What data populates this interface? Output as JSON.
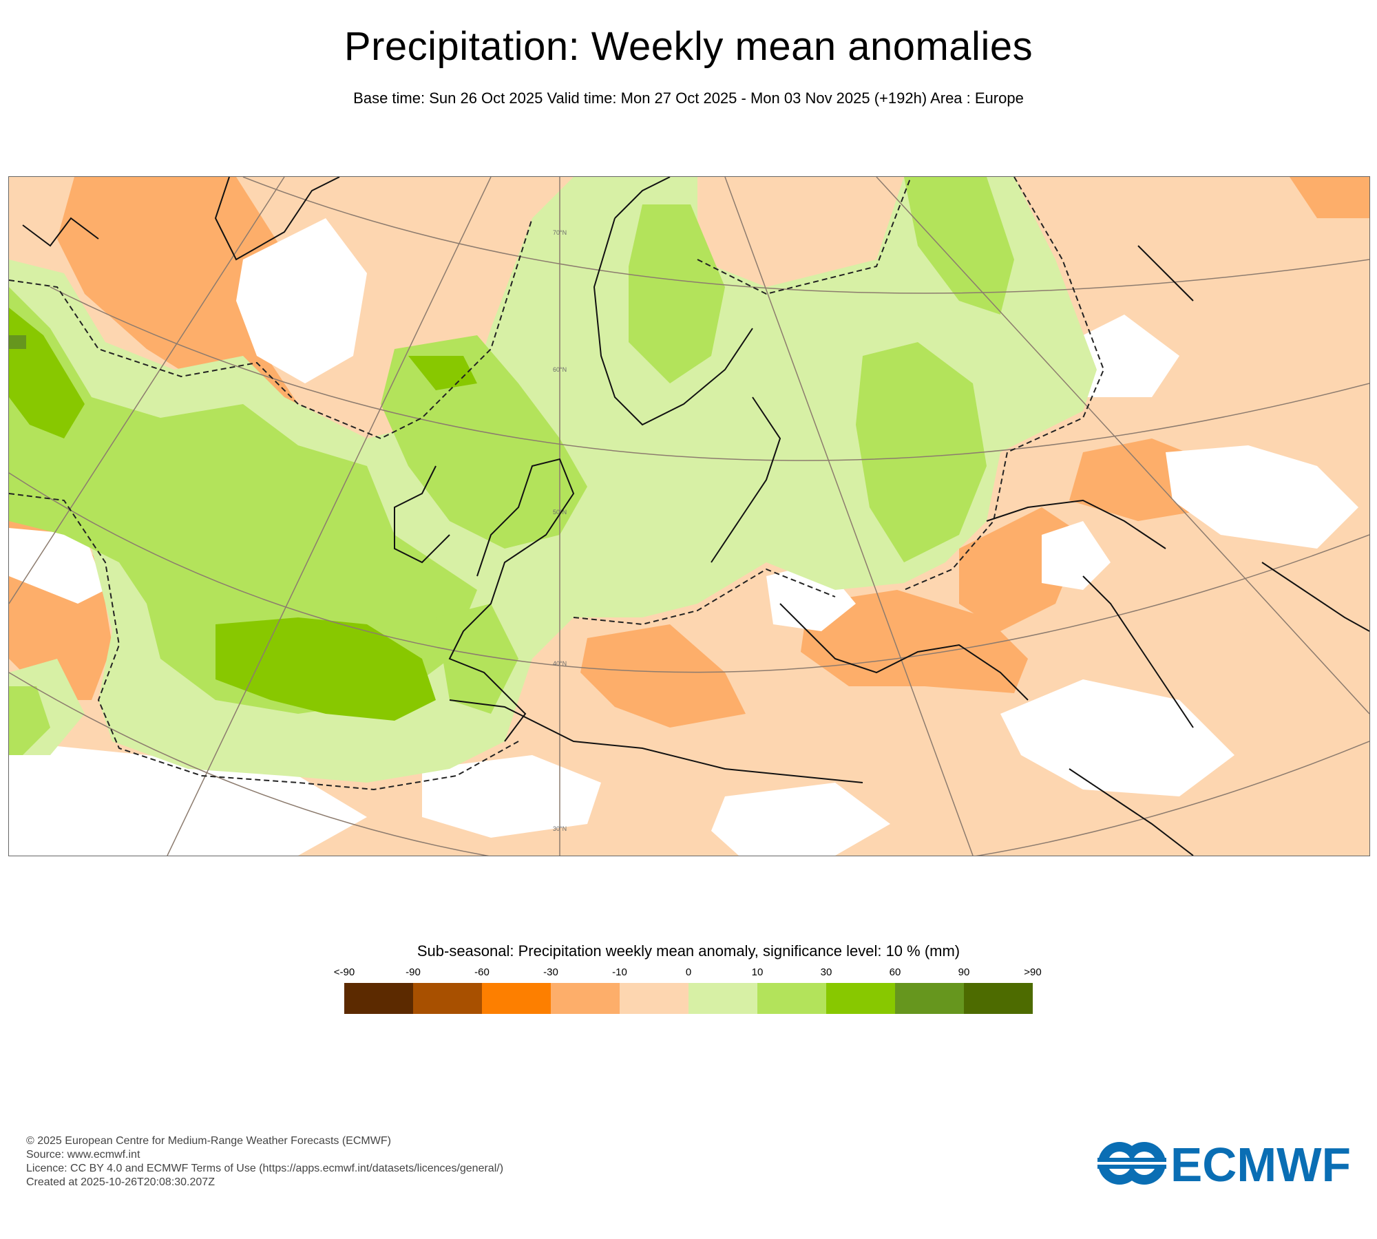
{
  "header": {
    "title": "Precipitation: Weekly mean anomalies",
    "subtitle": "Base time: Sun 26 Oct 2025 Valid time: Mon 27 Oct 2025 - Mon 03 Nov 2025 (+192h) Area : Europe"
  },
  "map": {
    "region": "Europe",
    "lat_labels": [
      "70°N",
      "60°N",
      "50°N",
      "40°N",
      "30°N"
    ],
    "layer_colors": {
      "light_orange": "#fdd6b0",
      "orange": "#fdae6a",
      "strong_orange": "#fd7f00",
      "light_green": "#d7f0a5",
      "green": "#b3e35b",
      "strong_green": "#88c800",
      "dark_green": "#66961e"
    }
  },
  "legend": {
    "title": "Sub-seasonal: Precipitation weekly mean anomaly, significance level: 10 % (mm)",
    "tick_labels": [
      "<-90",
      "-90",
      "-60",
      "-30",
      "-10",
      "0",
      "10",
      "30",
      "60",
      "90",
      ">90"
    ],
    "colors": [
      "#5c2a00",
      "#a85000",
      "#fd7f00",
      "#fdae6a",
      "#fdd6b0",
      "#d7f0a5",
      "#b3e35b",
      "#88c800",
      "#66961e",
      "#4d6b00"
    ]
  },
  "footer": {
    "lines": [
      "© 2025 European Centre for Medium-Range Weather Forecasts (ECMWF)",
      "Source: www.ecmwf.int",
      "Licence: CC BY 4.0 and ECMWF Terms of Use (https://apps.ecmwf.int/datasets/licences/general/)",
      "Created at 2025-10-26T20:08:30.207Z"
    ]
  },
  "logo": {
    "text": "ECMWF",
    "color": "#0a6eb4"
  }
}
